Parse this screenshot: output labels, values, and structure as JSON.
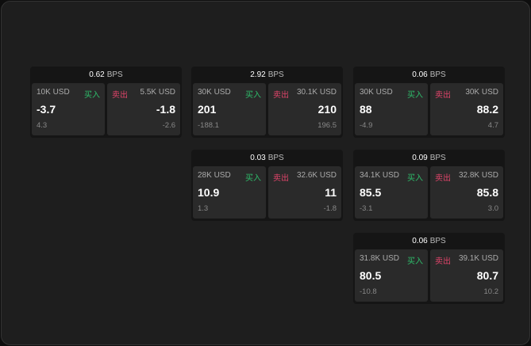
{
  "cards": [
    {
      "bps": "0.62",
      "unit": "BPS",
      "bid": {
        "size": "10K USD",
        "side": "买入",
        "price": "-3.7",
        "sub": "4.3"
      },
      "ask": {
        "size": "5.5K USD",
        "side": "卖出",
        "price": "-1.8",
        "sub": "-2.6"
      }
    },
    {
      "bps": "2.92",
      "unit": "BPS",
      "bid": {
        "size": "30K USD",
        "side": "买入",
        "price": "201",
        "sub": "-188.1"
      },
      "ask": {
        "size": "30.1K USD",
        "side": "卖出",
        "price": "210",
        "sub": "196.5"
      }
    },
    {
      "bps": "0.06",
      "unit": "BPS",
      "bid": {
        "size": "30K USD",
        "side": "买入",
        "price": "88",
        "sub": "-4.9"
      },
      "ask": {
        "size": "30K USD",
        "side": "卖出",
        "price": "88.2",
        "sub": "4.7"
      }
    },
    {
      "bps": "0.03",
      "unit": "BPS",
      "bid": {
        "size": "28K USD",
        "side": "买入",
        "price": "10.9",
        "sub": "1.3"
      },
      "ask": {
        "size": "32.6K USD",
        "side": "卖出",
        "price": "11",
        "sub": "-1.8"
      }
    },
    {
      "bps": "0.09",
      "unit": "BPS",
      "bid": {
        "size": "34.1K USD",
        "side": "买入",
        "price": "85.5",
        "sub": "-3.1"
      },
      "ask": {
        "size": "32.8K USD",
        "side": "卖出",
        "price": "85.8",
        "sub": "3.0"
      }
    },
    {
      "bps": "0.06",
      "unit": "BPS",
      "bid": {
        "size": "31.8K USD",
        "side": "买入",
        "price": "80.5",
        "sub": "-10.8"
      },
      "ask": {
        "size": "39.1K USD",
        "side": "卖出",
        "price": "80.7",
        "sub": "10.2"
      }
    }
  ],
  "colors": {
    "buy": "#2ebd6b",
    "sell": "#e0446a"
  }
}
